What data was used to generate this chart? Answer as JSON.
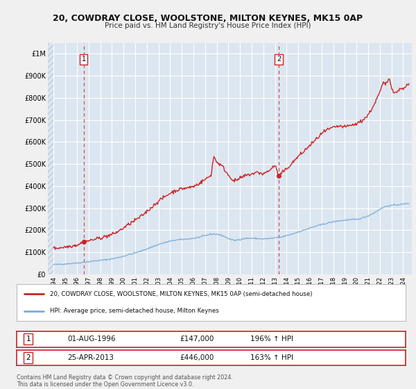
{
  "title_line1": "20, COWDRAY CLOSE, WOOLSTONE, MILTON KEYNES, MK15 0AP",
  "title_line2": "Price paid vs. HM Land Registry's House Price Index (HPI)",
  "bg_color": "#dce6f0",
  "plot_bg_color": "#dce6f0",
  "grid_color": "#ffffff",
  "sale1_year": 1996.583,
  "sale1_price": 147000,
  "sale2_year": 2013.32,
  "sale2_price": 446000,
  "ylim_max": 1050000,
  "ylim_min": 0,
  "xlim_min": 1993.5,
  "xlim_max": 2024.75,
  "legend_line1": "20, COWDRAY CLOSE, WOOLSTONE, MILTON KEYNES, MK15 0AP (semi-detached house)",
  "legend_line2": "HPI: Average price, semi-detached house, Milton Keynes",
  "footer_line1": "Contains HM Land Registry data © Crown copyright and database right 2024.",
  "footer_line2": "This data is licensed under the Open Government Licence v3.0.",
  "table_row1_num": "1",
  "table_row1_date": "01-AUG-1996",
  "table_row1_price": "£147,000",
  "table_row1_hpi": "196% ↑ HPI",
  "table_row2_num": "2",
  "table_row2_date": "25-APR-2013",
  "table_row2_price": "£446,000",
  "table_row2_hpi": "163% ↑ HPI",
  "hpi_color": "#7aaddb",
  "price_color": "#cc2222",
  "dashed_color": "#cc3333",
  "fig_bg": "#f5f5f5",
  "outer_bg": "#f0f0f0"
}
